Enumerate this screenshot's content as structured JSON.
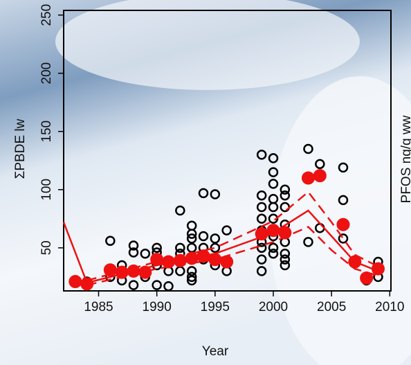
{
  "chart_data": {
    "type": "scatter",
    "x_label": "Year",
    "y_label": "ΣPBDE lw",
    "right_label": "PFOS ng/g ww",
    "xlim": [
      1982,
      2010.1
    ],
    "ylim": [
      13,
      254
    ],
    "xticks": [
      1985,
      1990,
      1995,
      2000,
      2005,
      2010
    ],
    "yticks": [
      50,
      100,
      150,
      200,
      250
    ],
    "series": [
      {
        "style": "open-circle",
        "color": "#000000",
        "x": [
          1983,
          1983,
          1984,
          1984,
          1986,
          1986,
          1986,
          1987,
          1987,
          1987,
          1988,
          1988,
          1988,
          1988,
          1989,
          1989,
          1990,
          1990,
          1990,
          1990,
          1991,
          1991,
          1992,
          1992,
          1992,
          1992,
          1992,
          1993,
          1993,
          1993,
          1993,
          1993,
          1993,
          1993,
          1993,
          1994,
          1994,
          1994,
          1994,
          1995,
          1995,
          1995,
          1995,
          1996,
          1996,
          1999,
          1999,
          1999,
          1999,
          1999,
          1999,
          1999,
          1999,
          1999,
          2000,
          2000,
          2000,
          2000,
          2000,
          2000,
          2000,
          2000,
          2000,
          2001,
          2001,
          2001,
          2001,
          2001,
          2001,
          2001,
          2001,
          2003,
          2003,
          2003,
          2004,
          2004,
          2006,
          2006,
          2006,
          2007,
          2008,
          2009,
          2009
        ],
        "values": [
          20,
          22,
          18,
          21,
          56,
          30,
          25,
          35,
          22,
          28,
          52,
          46,
          18,
          30,
          45,
          25,
          50,
          46,
          18,
          35,
          17,
          30,
          82,
          50,
          45,
          40,
          30,
          69,
          62,
          58,
          50,
          40,
          30,
          25,
          22,
          97,
          60,
          50,
          40,
          96,
          58,
          50,
          35,
          65,
          30,
          130,
          95,
          85,
          75,
          65,
          55,
          50,
          40,
          30,
          127,
          115,
          105,
          92,
          85,
          75,
          60,
          50,
          45,
          100,
          95,
          85,
          70,
          55,
          45,
          40,
          35,
          135,
          110,
          55,
          122,
          67,
          119,
          91,
          58,
          38,
          22,
          38,
          25
        ]
      },
      {
        "style": "filled-circle",
        "color": "#ee1111",
        "x": [
          1983,
          1984,
          1986,
          1987,
          1988,
          1989,
          1990,
          1991,
          1992,
          1993,
          1994,
          1995,
          1996,
          1999,
          2000,
          2001,
          2003,
          2004,
          2006,
          2007,
          2008,
          2009
        ],
        "values": [
          21,
          19,
          31,
          29,
          30,
          29,
          40,
          38,
          39,
          41,
          43,
          40,
          38,
          62,
          65,
          63,
          110,
          112,
          70,
          38,
          24,
          32
        ]
      },
      {
        "style": "solid-line",
        "color": "#ee1111",
        "x": [
          1982,
          1984,
          1990,
          1995,
          2000,
          2003,
          2005,
          2007,
          2009
        ],
        "values": [
          72,
          20,
          35,
          45,
          63,
          82,
          60,
          38,
          30
        ]
      },
      {
        "style": "dashed-line",
        "color": "#ee1111",
        "x": [
          1984,
          1990,
          1995,
          2000,
          2003,
          2005,
          2007,
          2009
        ],
        "values": [
          22,
          38,
          50,
          73,
          98,
          72,
          44,
          34
        ]
      },
      {
        "style": "dashed-line",
        "color": "#ee1111",
        "x": [
          1984,
          1990,
          1995,
          2000,
          2003,
          2005,
          2007,
          2009
        ],
        "values": [
          18,
          32,
          40,
          55,
          68,
          48,
          32,
          26
        ]
      }
    ]
  }
}
